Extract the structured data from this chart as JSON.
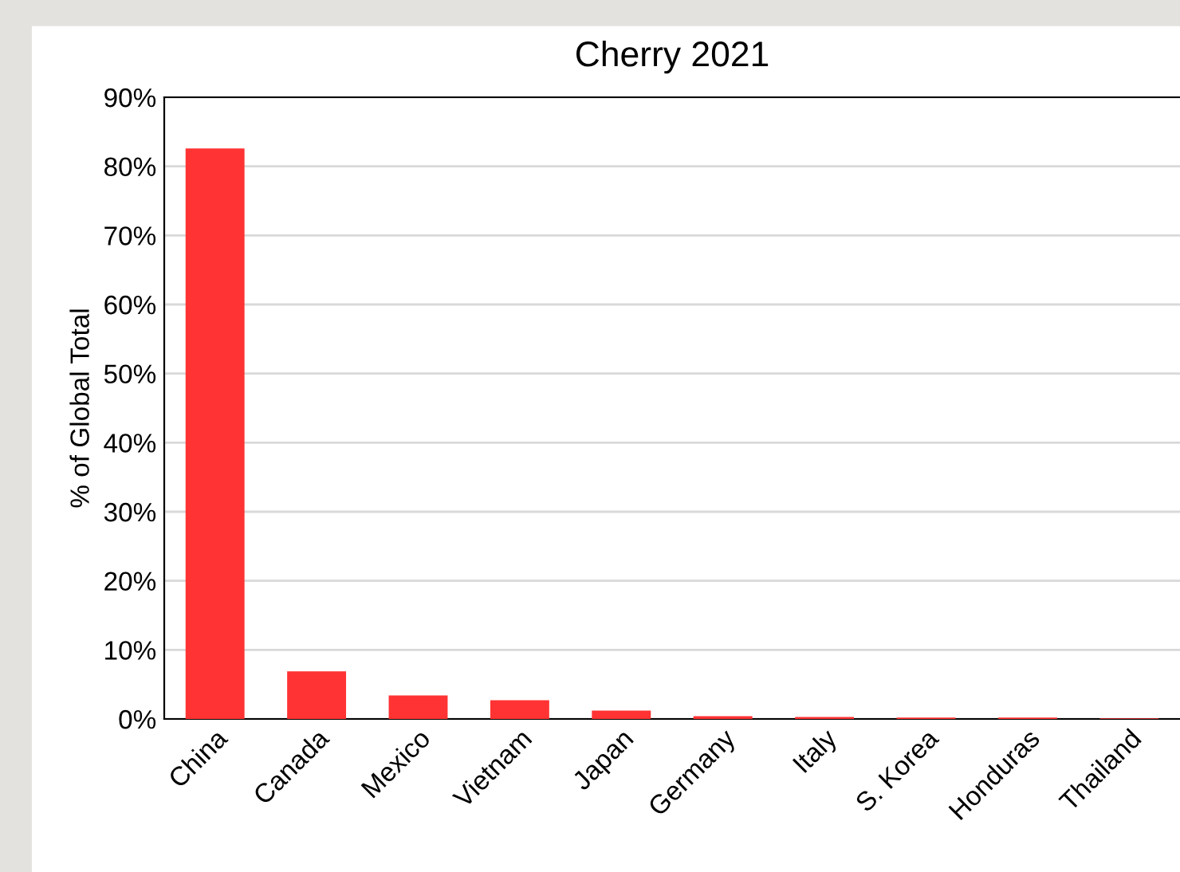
{
  "chart_data": {
    "type": "bar",
    "title": "Cherry 2021",
    "ylabel": "% of Global Total",
    "categories": [
      "China",
      "Canada",
      "Mexico",
      "Vietnam",
      "Japan",
      "Germany",
      "Italy",
      "S. Korea",
      "Honduras",
      "Thailand"
    ],
    "values": [
      82.6,
      6.9,
      3.4,
      2.7,
      1.2,
      0.4,
      0.3,
      0.2,
      0.2,
      0.1
    ],
    "color": "#ff3333",
    "ylim": [
      0,
      90
    ],
    "yticks": [
      {
        "value": 0,
        "label": "0%"
      },
      {
        "value": 10,
        "label": "10%"
      },
      {
        "value": 20,
        "label": "20%"
      },
      {
        "value": 30,
        "label": "30%"
      },
      {
        "value": 40,
        "label": "40%"
      },
      {
        "value": 50,
        "label": "50%"
      },
      {
        "value": 60,
        "label": "60%"
      },
      {
        "value": 70,
        "label": "70%"
      },
      {
        "value": 80,
        "label": "80%"
      },
      {
        "value": 90,
        "label": "90%"
      }
    ],
    "grid": "y",
    "legend": false
  }
}
